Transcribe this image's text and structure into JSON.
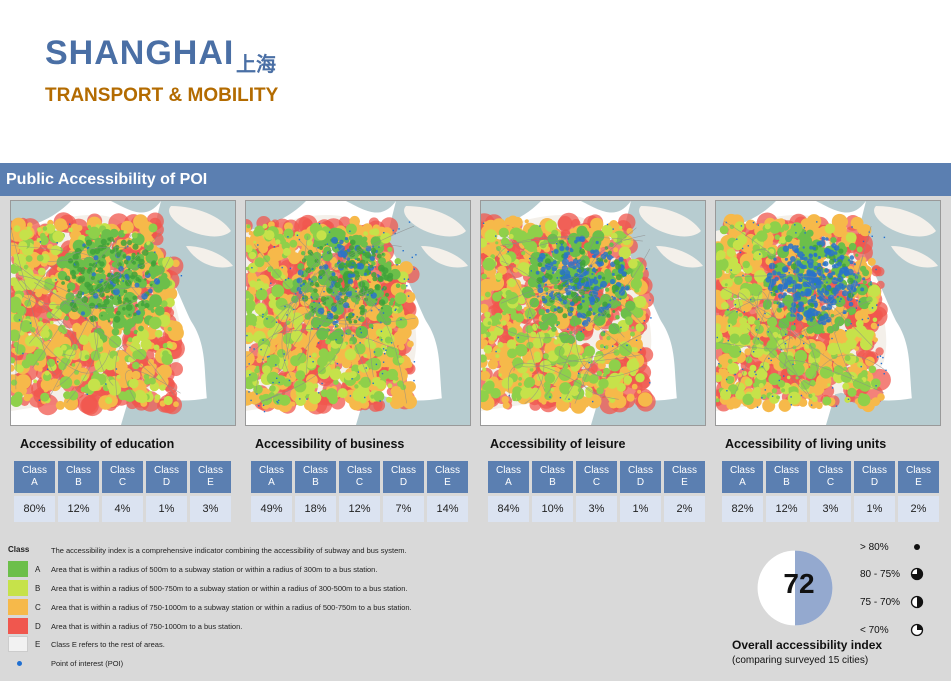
{
  "header": {
    "title": "SHANGHAI",
    "title_cn": "上海",
    "subtitle": "TRANSPORT & MOBILITY"
  },
  "section_title": "Public Accessibility of POI",
  "class_headers": [
    {
      "top": "Class",
      "bottom": "A"
    },
    {
      "top": "Class",
      "bottom": "B"
    },
    {
      "top": "Class",
      "bottom": "C"
    },
    {
      "top": "Class",
      "bottom": "D"
    },
    {
      "top": "Class",
      "bottom": "E"
    }
  ],
  "panels": [
    {
      "title": "Accessibility of education",
      "values": [
        "80%",
        "12%",
        "4%",
        "1%",
        "3%"
      ]
    },
    {
      "title": "Accessibility of business",
      "values": [
        "49%",
        "18%",
        "12%",
        "7%",
        "14%"
      ]
    },
    {
      "title": "Accessibility of leisure",
      "values": [
        "84%",
        "10%",
        "3%",
        "1%",
        "2%"
      ]
    },
    {
      "title": "Accessibility of living units",
      "values": [
        "82%",
        "12%",
        "3%",
        "1%",
        "2%"
      ]
    }
  ],
  "legend": {
    "heading": "Class",
    "intro": "The accessibility index is a comprehensive indicator combining the accessibility of subway and bus system.",
    "items": [
      {
        "letter": "A",
        "color": "#6cbf4a",
        "text": "Area that is within a radius of 500m to a subway station or within a radius of 300m to a bus station."
      },
      {
        "letter": "B",
        "color": "#c6e24a",
        "text": "Area that is within a radius of 500-750m to a subway station or within a radius of 300-500m to a bus station."
      },
      {
        "letter": "C",
        "color": "#f6b94a",
        "text": "Area that is within a radius of 750-1000m to a subway station or within a radius of 500-750m to a bus station."
      },
      {
        "letter": "D",
        "color": "#f0574e",
        "text": "Area that is within a radius of 750-1000m to a bus station."
      },
      {
        "letter": "E",
        "color": "#f2f2f2",
        "text": "Class E refers to the rest of areas."
      }
    ],
    "poi_text": "Point of interest (POI)"
  },
  "index": {
    "value": "72",
    "fraction": 0.72,
    "label": "Overall accessibility index",
    "sub": "(comparing surveyed 15 cities)",
    "scale": [
      {
        "label": "> 80%",
        "fill": 1.0
      },
      {
        "label": "80 - 75%",
        "fill": 0.75
      },
      {
        "label": "75 - 70%",
        "fill": 0.5
      },
      {
        "label": "< 70%",
        "fill": 0.25
      }
    ]
  },
  "colors": {
    "accent_blue": "#5b7fb1",
    "title_blue": "#4a6fa5",
    "subtitle_orange": "#b36b00",
    "water": "#b7ccd0",
    "poi": "#1f6fd1"
  }
}
